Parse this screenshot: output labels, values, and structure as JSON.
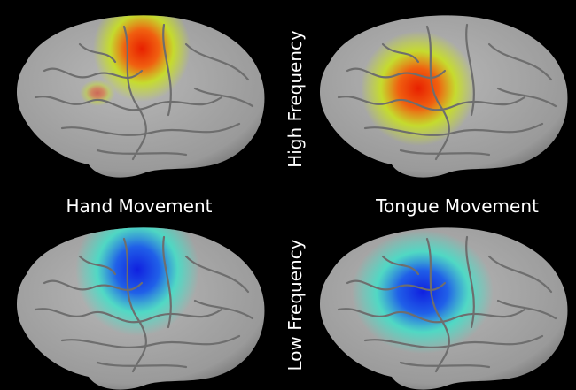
{
  "columns": [
    "Hand Movement",
    "Tongue Movement"
  ],
  "rows": [
    "High Frequency",
    "Low Frequency"
  ]
}
